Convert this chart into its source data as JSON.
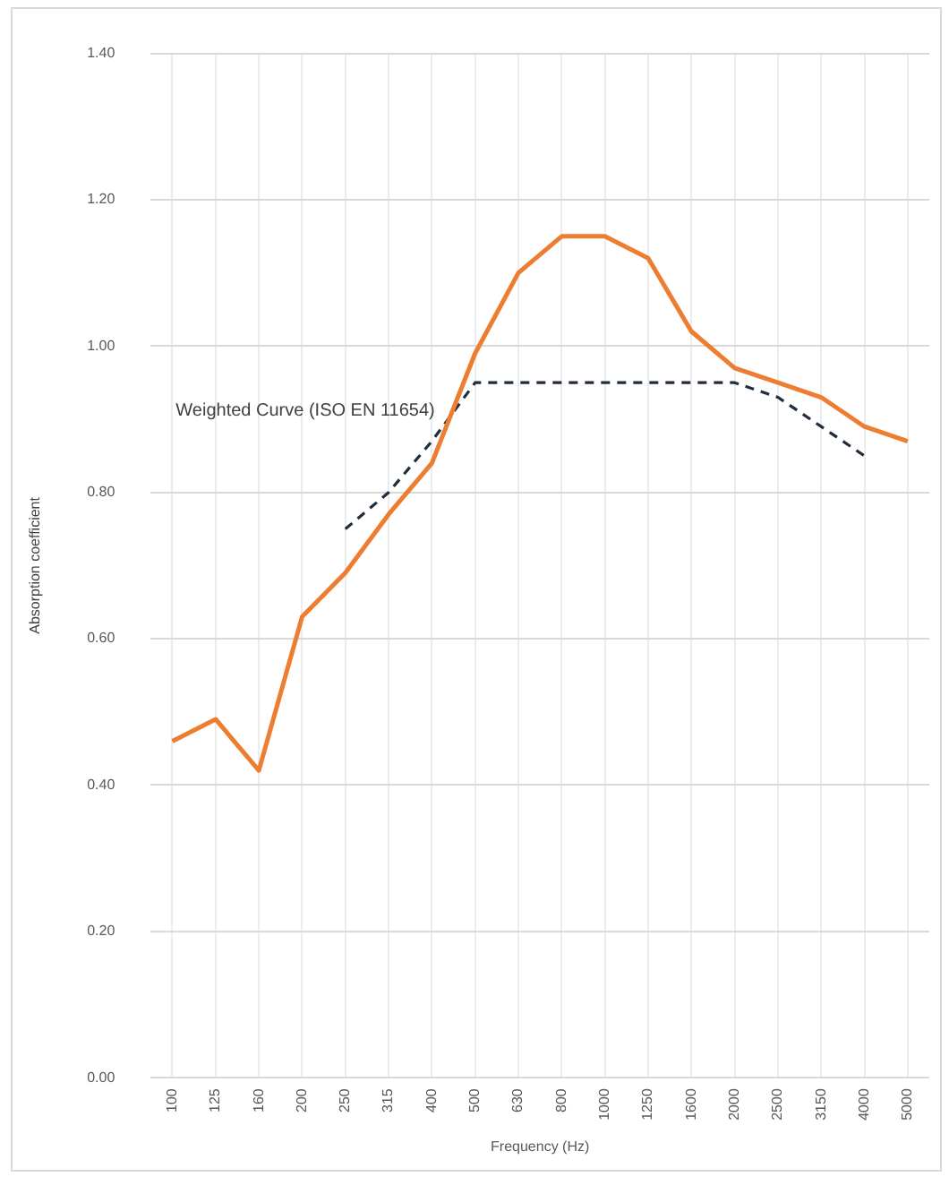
{
  "chart_data": {
    "type": "line",
    "categories": [
      "100",
      "125",
      "160",
      "200",
      "250",
      "315",
      "400",
      "500",
      "630",
      "800",
      "1000",
      "1250",
      "1600",
      "2000",
      "2500",
      "3150",
      "4000",
      "5000"
    ],
    "series": [
      {
        "color": "#ed7d31",
        "line_style": "solid",
        "values": [
          0.46,
          0.49,
          0.42,
          0.63,
          0.69,
          0.77,
          0.84,
          0.99,
          1.1,
          1.15,
          1.15,
          1.12,
          1.02,
          0.97,
          0.95,
          0.93,
          0.89,
          0.87
        ]
      },
      {
        "name": "Weighted Curve (ISO EN 11654)",
        "color": "#1f2d3d",
        "line_style": "dashed",
        "values": [
          null,
          null,
          null,
          null,
          0.75,
          0.8,
          0.87,
          0.95,
          0.95,
          0.95,
          0.95,
          0.95,
          0.95,
          0.95,
          0.93,
          0.89,
          0.85,
          null
        ]
      }
    ],
    "xlabel": "Frequency (Hz)",
    "ylabel": "Absorption coefficient",
    "ylim": [
      0,
      1.4
    ],
    "yticks": [
      {
        "value": 0,
        "label": "0.00"
      },
      {
        "value": 0.2,
        "label": "0.20"
      },
      {
        "value": 0.4,
        "label": "0.40"
      },
      {
        "value": 0.6,
        "label": "0.60"
      },
      {
        "value": 0.8,
        "label": "0.80"
      },
      {
        "value": 1.0,
        "label": "1.00"
      },
      {
        "value": 1.2,
        "label": "1.20"
      },
      {
        "value": 1.4,
        "label": "1.40"
      }
    ],
    "grid": true,
    "legend": false,
    "marker": "none"
  }
}
